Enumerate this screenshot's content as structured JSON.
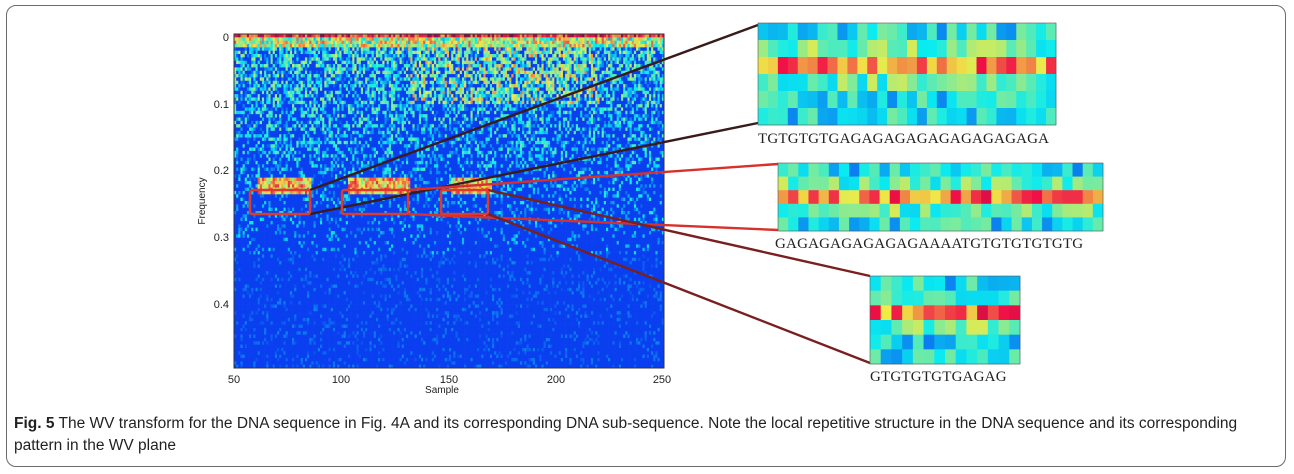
{
  "figure": {
    "ylabel": "Frequency",
    "xlabel": "Sample",
    "xticks": [
      "50",
      "100",
      "150",
      "200",
      "250"
    ],
    "yticks": [
      "0",
      "0.1",
      "0.2",
      "0.3",
      "0.4"
    ],
    "zoom_sequences": [
      "TGTGTGTGAGAGAGAGAGAGAGAGAGA",
      "GAGAGAGAGAGAGAAAATGTGTGTGTGTG",
      "GTGTGTGTGAGAG"
    ],
    "colors": {
      "highlight_box": "#e03a2a",
      "connector_dark": "#7a1f1f",
      "background_field": "#2c3592"
    }
  },
  "chart_data": {
    "type": "heatmap",
    "title": "",
    "xlabel": "Sample",
    "ylabel": "Frequency",
    "xlim": [
      50,
      250
    ],
    "ylim": [
      0,
      0.5
    ],
    "x_ticks": [
      50,
      100,
      150,
      200,
      250
    ],
    "y_ticks": [
      0,
      0.1,
      0.2,
      0.3,
      0.4
    ],
    "colormap": "jet",
    "highlighted_regions": [
      {
        "x": [
          60,
          85
        ],
        "y": [
          0.23,
          0.26
        ],
        "sequence": "TGTGTGTGAGAGAGAGAGAGAGAGAGA"
      },
      {
        "x": [
          103,
          132
        ],
        "y": [
          0.23,
          0.26
        ],
        "sequence": "GAGAGAGAGAGAGAAAATGTGTGTGTGTG"
      },
      {
        "x": [
          150,
          170
        ],
        "y": [
          0.23,
          0.26
        ],
        "sequence": "GTGTGTGTGAGAG"
      }
    ]
  },
  "caption": {
    "label": "Fig. 5",
    "text": "The WV transform for the DNA sequence in Fig. 4A and its corresponding DNA sub-sequence. Note the local repetitive structure in the DNA sequence and its corresponding pattern in the WV plane"
  }
}
